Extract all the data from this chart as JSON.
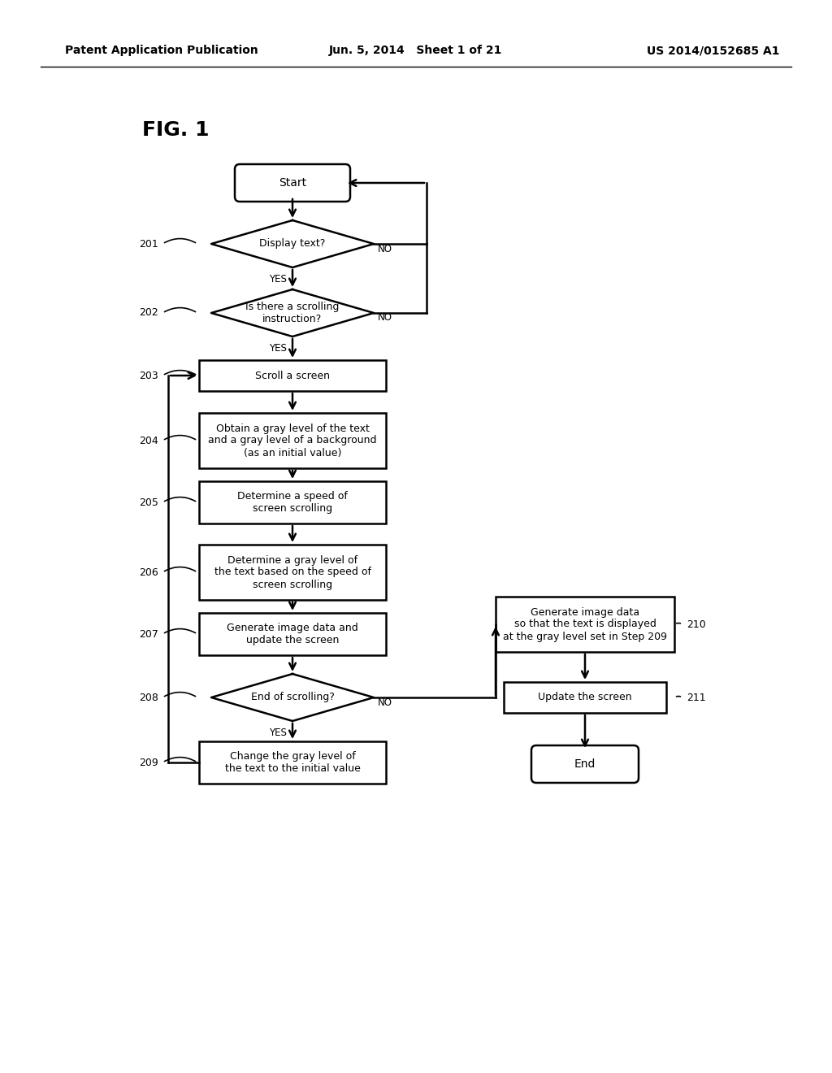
{
  "header_left": "Patent Application Publication",
  "header_mid": "Jun. 5, 2014   Sheet 1 of 21",
  "header_right": "US 2014/0152685 A1",
  "fig_label": "FIG. 1",
  "bg_color": "#ffffff",
  "lc": "#000000",
  "nodes": {
    "start": {
      "label": "Start",
      "type": "rounded"
    },
    "d201": {
      "label": "Display text?",
      "type": "diamond"
    },
    "d202": {
      "label": "Is there a scrolling\ninstruction?",
      "type": "diamond"
    },
    "b203": {
      "label": "Scroll a screen",
      "type": "rect"
    },
    "b204": {
      "label": "Obtain a gray level of the text\nand a gray level of a background\n(as an initial value)",
      "type": "rect"
    },
    "b205": {
      "label": "Determine a speed of\nscreen scrolling",
      "type": "rect"
    },
    "b206": {
      "label": "Determine a gray level of\nthe text based on the speed of\nscreen scrolling",
      "type": "rect"
    },
    "b207": {
      "label": "Generate image data and\nupdate the screen",
      "type": "rect"
    },
    "d208": {
      "label": "End of scrolling?",
      "type": "diamond"
    },
    "b209": {
      "label": "Change the gray level of\nthe text to the initial value",
      "type": "rect"
    },
    "b210": {
      "label": "Generate image data\nso that the text is displayed\nat the gray level set in Step 209",
      "type": "rect"
    },
    "b211": {
      "label": "Update the screen",
      "type": "rect"
    },
    "end": {
      "label": "End",
      "type": "rounded"
    }
  }
}
